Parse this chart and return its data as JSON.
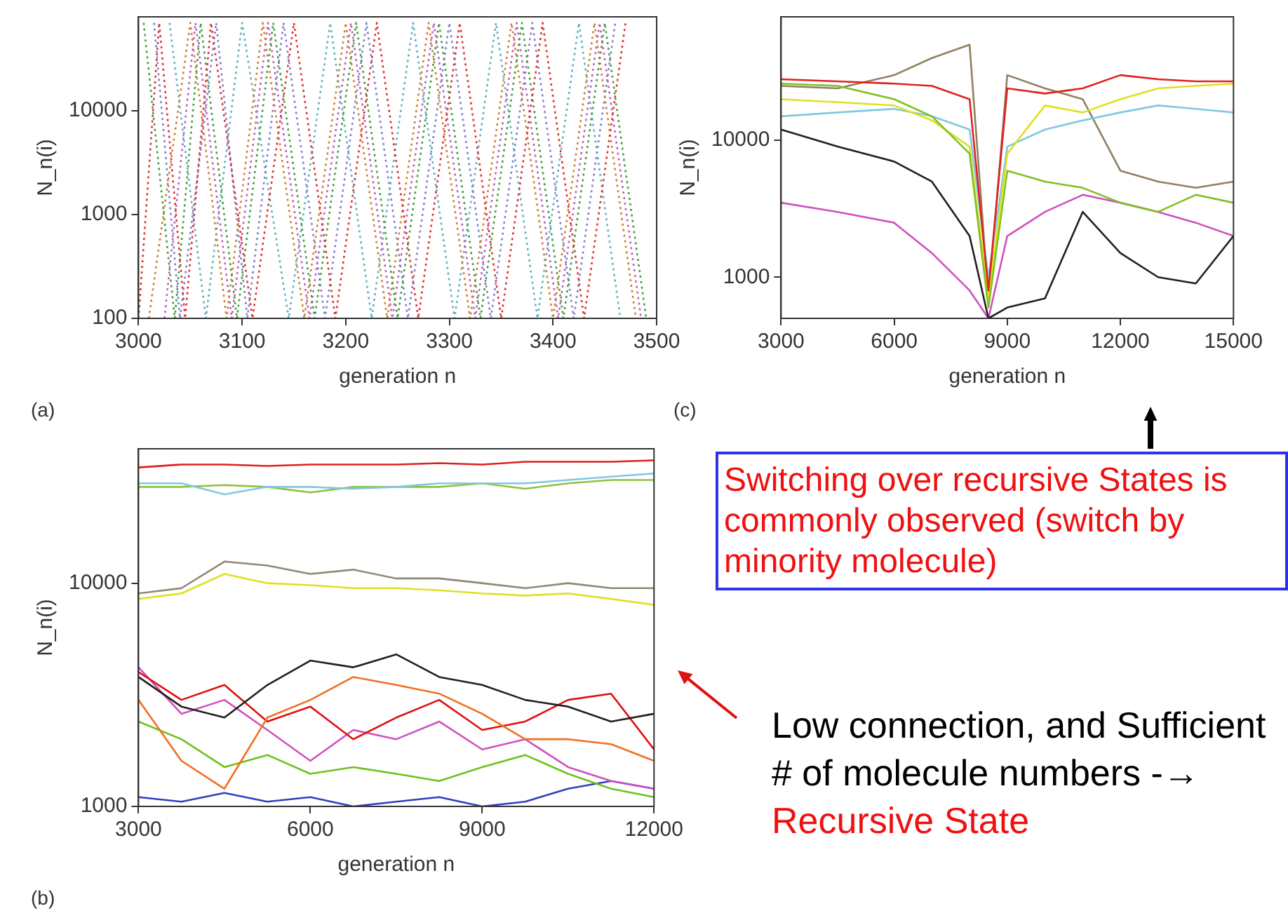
{
  "chart_data": [
    {
      "type": "line",
      "xlabel": "generation n",
      "ylabel": "N_n(i)",
      "log": "y",
      "line_style": "dotted",
      "xlim": [
        3000,
        3500
      ],
      "ylim": [
        100,
        80000
      ],
      "xticks": [
        3000,
        3100,
        3200,
        3300,
        3400,
        3500
      ],
      "yticks": [
        100,
        1000,
        10000
      ],
      "annotations": [
        "(a)"
      ],
      "series": [
        {
          "color": "#e03030",
          "x": [
            3000,
            3020,
            3045,
            3070,
            3110,
            3150,
            3190,
            3230,
            3270,
            3310,
            3350,
            3390,
            3430,
            3470
          ],
          "values": [
            100,
            70000,
            100,
            70000,
            100,
            70000,
            100,
            70000,
            100,
            70000,
            100,
            70000,
            100,
            70000
          ]
        },
        {
          "color": "#40a040",
          "x": [
            3005,
            3035,
            3060,
            3095,
            3130,
            3170,
            3210,
            3250,
            3290,
            3330,
            3370,
            3410,
            3450,
            3490
          ],
          "values": [
            70000,
            100,
            70000,
            100,
            70000,
            100,
            70000,
            100,
            70000,
            100,
            70000,
            100,
            70000,
            100
          ]
        },
        {
          "color": "#d08030",
          "x": [
            3010,
            3050,
            3085,
            3120,
            3160,
            3200,
            3240,
            3280,
            3320,
            3360,
            3400,
            3440,
            3480
          ],
          "values": [
            100,
            70000,
            100,
            70000,
            100,
            70000,
            100,
            70000,
            100,
            70000,
            100,
            70000,
            100
          ]
        },
        {
          "color": "#8080d0",
          "x": [
            3015,
            3040,
            3075,
            3105,
            3140,
            3180,
            3220,
            3260,
            3300,
            3340,
            3380,
            3420,
            3460
          ],
          "values": [
            70000,
            100,
            70000,
            100,
            70000,
            100,
            70000,
            100,
            70000,
            100,
            70000,
            100,
            70000
          ]
        },
        {
          "color": "#c060c0",
          "x": [
            3025,
            3055,
            3090,
            3125,
            3165,
            3205,
            3245,
            3285,
            3325,
            3365,
            3405,
            3445,
            3485
          ],
          "values": [
            100,
            70000,
            100,
            70000,
            100,
            70000,
            100,
            70000,
            100,
            70000,
            100,
            70000,
            100
          ]
        },
        {
          "color": "#60b0c0",
          "x": [
            3030,
            3065,
            3100,
            3145,
            3185,
            3225,
            3265,
            3305,
            3345,
            3385,
            3425,
            3465
          ],
          "values": [
            70000,
            100,
            70000,
            100,
            70000,
            100,
            70000,
            100,
            70000,
            100,
            70000,
            100
          ]
        }
      ]
    },
    {
      "type": "line",
      "xlabel": "generation n",
      "ylabel": "N_n(i)",
      "log": "y",
      "line_style": "solid",
      "xlim": [
        3000,
        12000
      ],
      "ylim": [
        1000,
        40000
      ],
      "xticks": [
        3000,
        6000,
        9000,
        12000
      ],
      "yticks": [
        1000,
        10000
      ],
      "annotations": [
        "(b)",
        "Low connection, and Sufficient # of molecule numbers   -→",
        "Recursive State"
      ],
      "x": [
        3000,
        3750,
        4500,
        5250,
        6000,
        6750,
        7500,
        8250,
        9000,
        9750,
        10500,
        11250,
        12000
      ],
      "series": [
        {
          "color": "#e02020",
          "values": [
            33000,
            34000,
            34000,
            33500,
            34000,
            34000,
            34000,
            34500,
            34000,
            35000,
            35000,
            35000,
            35500
          ]
        },
        {
          "color": "#80c8e0",
          "values": [
            28000,
            28000,
            25000,
            27000,
            27000,
            26500,
            27000,
            28000,
            28000,
            28000,
            29000,
            30000,
            31000
          ]
        },
        {
          "color": "#90c040",
          "values": [
            27000,
            27000,
            27500,
            27000,
            25500,
            27000,
            27000,
            27000,
            28000,
            26500,
            28000,
            29000,
            29000
          ]
        },
        {
          "color": "#908878",
          "values": [
            9000,
            9500,
            12500,
            12000,
            11000,
            11500,
            10500,
            10500,
            10000,
            9500,
            10000,
            9500,
            9500
          ]
        },
        {
          "color": "#e0e020",
          "values": [
            8500,
            9000,
            11000,
            10000,
            9800,
            9500,
            9500,
            9300,
            9000,
            8800,
            9000,
            8500,
            8000
          ]
        },
        {
          "color": "#202020",
          "values": [
            3800,
            2800,
            2500,
            3500,
            4500,
            4200,
            4800,
            3800,
            3500,
            3000,
            2800,
            2400,
            2600
          ]
        },
        {
          "color": "#f07020",
          "values": [
            3000,
            1600,
            1200,
            2500,
            3000,
            3800,
            3500,
            3200,
            2600,
            2000,
            2000,
            1900,
            1600
          ]
        },
        {
          "color": "#e01010",
          "values": [
            4000,
            3000,
            3500,
            2400,
            2800,
            2000,
            2500,
            3000,
            2200,
            2400,
            3000,
            3200,
            1800
          ]
        },
        {
          "color": "#d050c0",
          "values": [
            4200,
            2600,
            3000,
            2200,
            1600,
            2200,
            2000,
            2400,
            1800,
            2000,
            1500,
            1300,
            1200
          ]
        },
        {
          "color": "#70c020",
          "values": [
            2400,
            2000,
            1500,
            1700,
            1400,
            1500,
            1400,
            1300,
            1500,
            1700,
            1400,
            1200,
            1100
          ]
        },
        {
          "color": "#3040c0",
          "values": [
            1100,
            1050,
            1150,
            1050,
            1100,
            1000,
            1050,
            1100,
            1000,
            1050,
            1200,
            1300,
            1200
          ]
        }
      ]
    },
    {
      "type": "line",
      "xlabel": "generation n",
      "ylabel": "N_n(i)",
      "log": "y",
      "line_style": "solid",
      "xlim": [
        3000,
        15000
      ],
      "ylim": [
        500,
        80000
      ],
      "xticks": [
        3000,
        6000,
        9000,
        12000,
        15000
      ],
      "yticks": [
        1000,
        10000
      ],
      "annotations": [
        "(c)",
        "Switching over recursive States is commonly observed (switch by minority molecule)"
      ],
      "x": [
        3000,
        4500,
        6000,
        7000,
        8000,
        8500,
        9000,
        10000,
        11000,
        12000,
        13000,
        14000,
        15000
      ],
      "series": [
        {
          "color": "#e02020",
          "values": [
            28000,
            27000,
            26000,
            25000,
            20000,
            800,
            24000,
            22000,
            24000,
            30000,
            28000,
            27000,
            27000
          ]
        },
        {
          "color": "#80c020",
          "values": [
            26000,
            25000,
            20000,
            15000,
            8000,
            600,
            6000,
            5000,
            4500,
            3500,
            3000,
            4000,
            3500
          ]
        },
        {
          "color": "#e0e020",
          "values": [
            20000,
            19000,
            18000,
            14000,
            9000,
            700,
            8000,
            18000,
            16000,
            20000,
            24000,
            25000,
            26000
          ]
        },
        {
          "color": "#80c8e0",
          "values": [
            15000,
            16000,
            17000,
            15000,
            12000,
            1000,
            9000,
            12000,
            14000,
            16000,
            18000,
            17000,
            16000
          ]
        },
        {
          "color": "#202020",
          "values": [
            12000,
            9000,
            7000,
            5000,
            2000,
            500,
            600,
            700,
            3000,
            1500,
            1000,
            900,
            2000
          ]
        },
        {
          "color": "#d050c0",
          "values": [
            3500,
            3000,
            2500,
            1500,
            800,
            500,
            2000,
            3000,
            4000,
            3500,
            3000,
            2500,
            2000
          ]
        },
        {
          "color": "#908060",
          "values": [
            25000,
            24000,
            30000,
            40000,
            50000,
            700,
            30000,
            24000,
            20000,
            6000,
            5000,
            4500,
            5000
          ]
        }
      ]
    }
  ]
}
